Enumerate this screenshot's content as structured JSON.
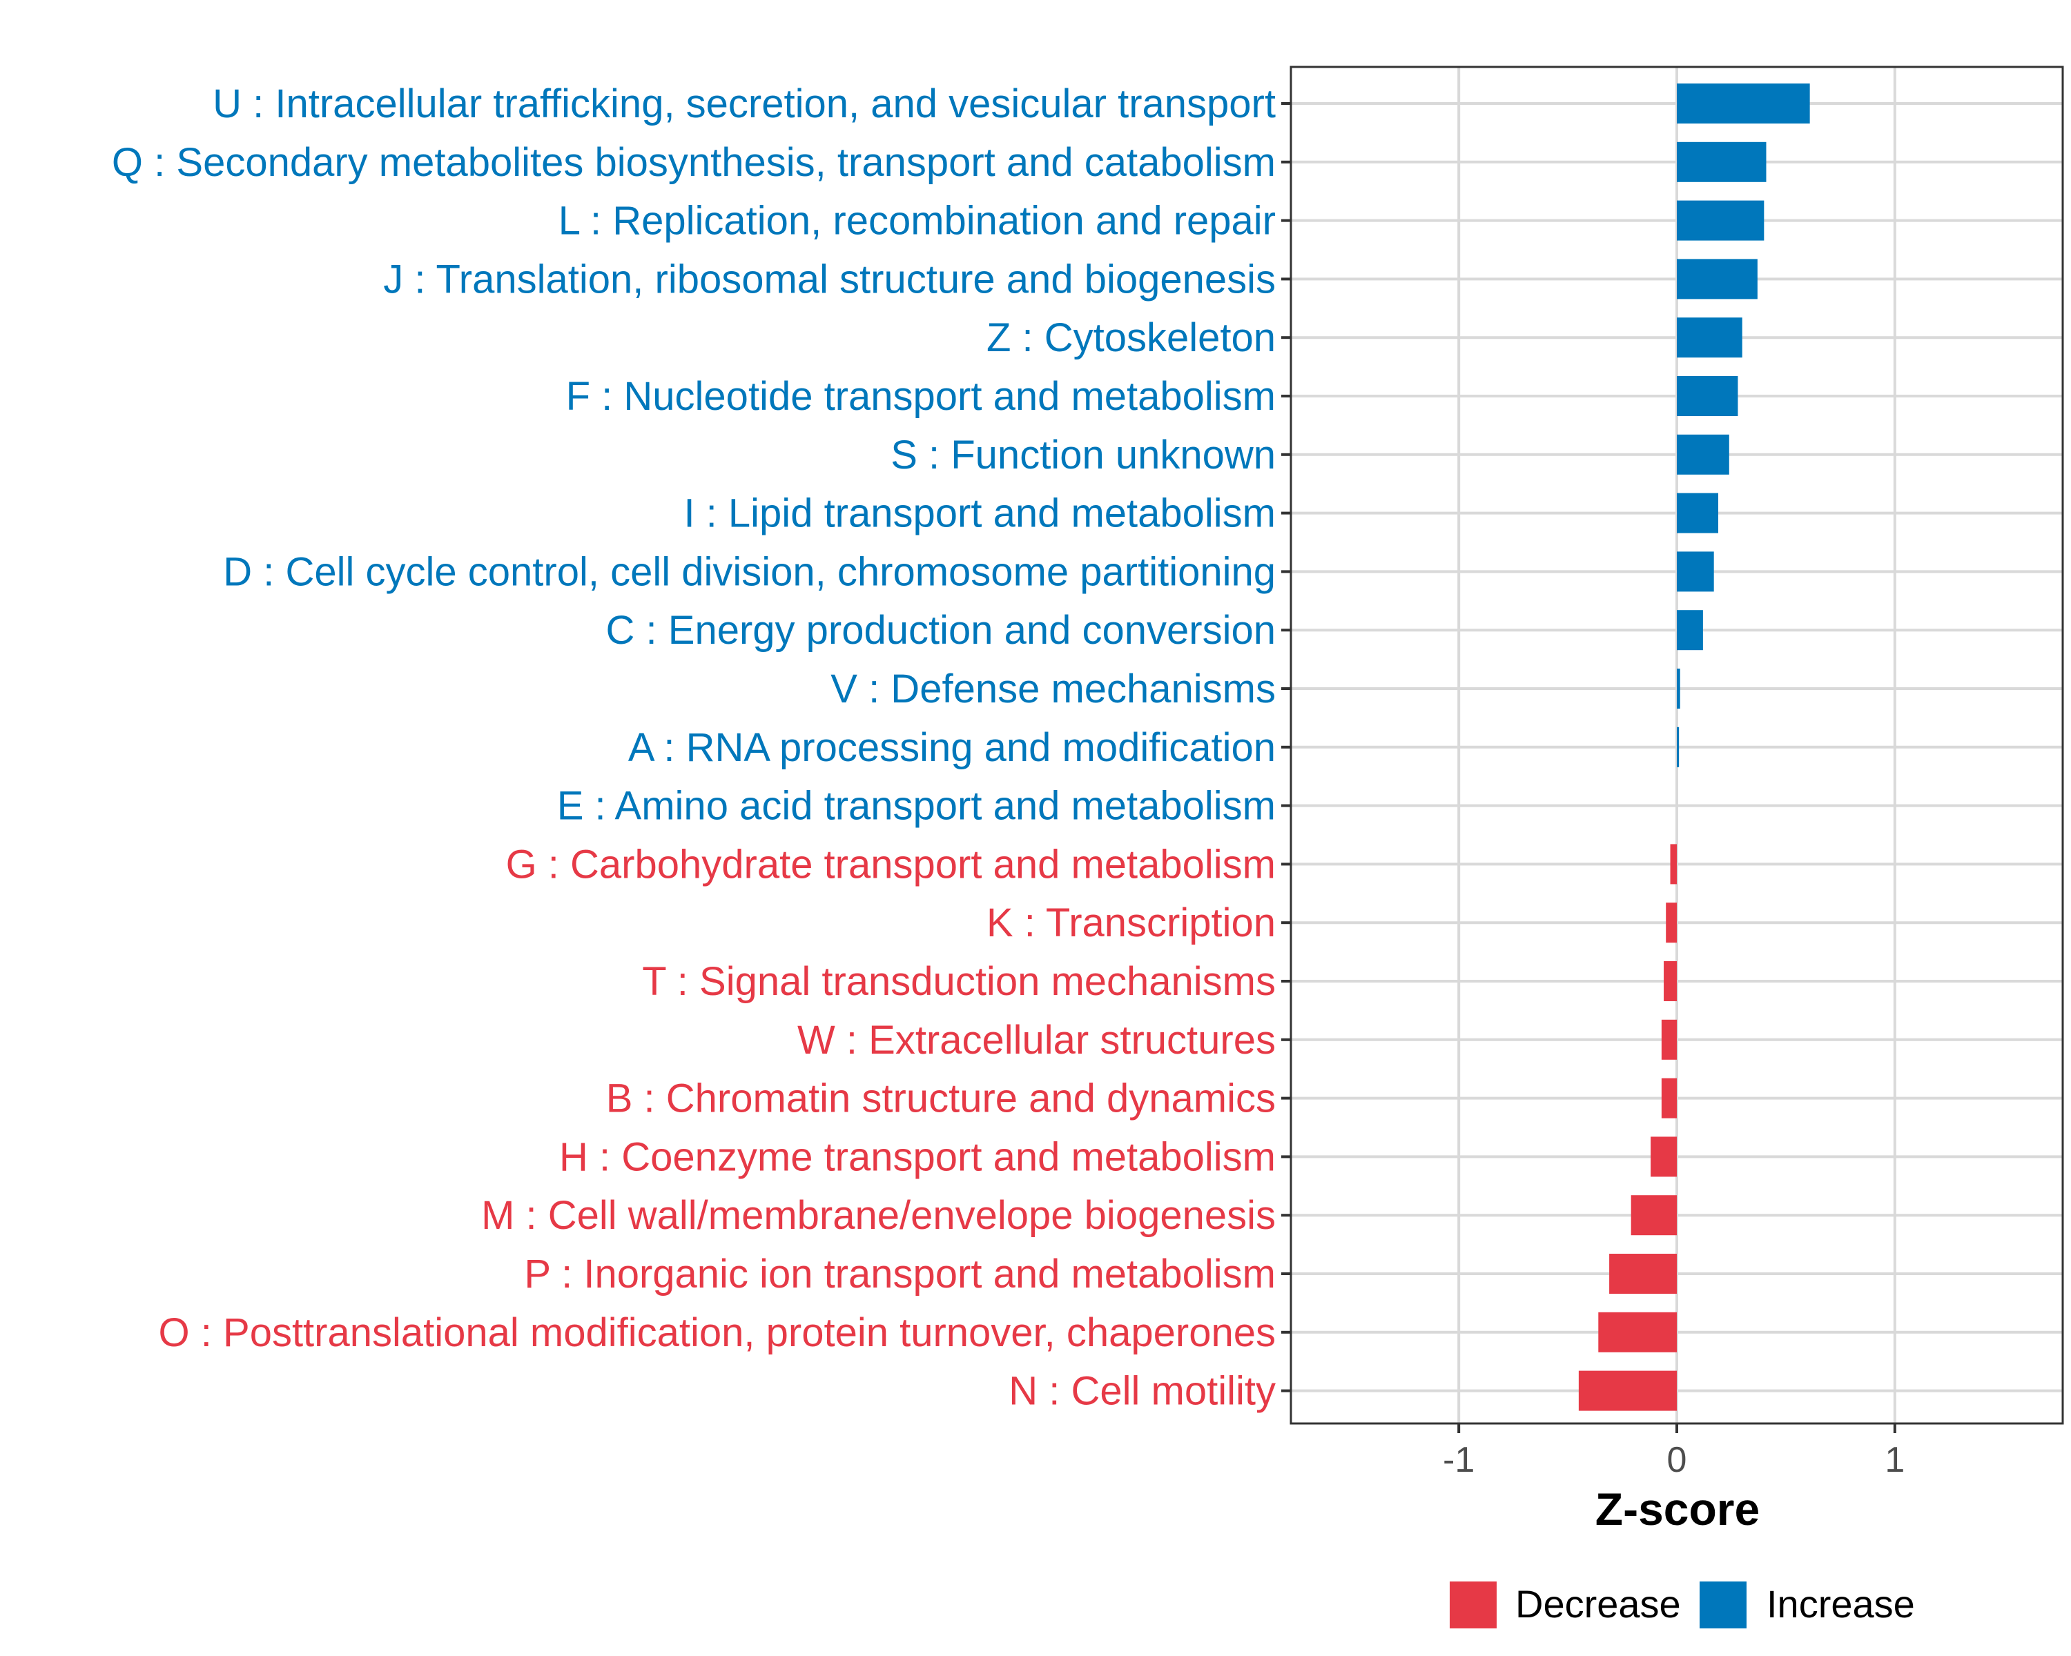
{
  "chart_data": {
    "type": "bar",
    "orientation": "horizontal",
    "title": "",
    "xlabel": "Z-score",
    "ylabel": "",
    "xlim": [
      -1.77,
      1.77
    ],
    "xticks": [
      -1,
      0,
      1
    ],
    "xtick_labels": [
      "-1",
      "0",
      "1"
    ],
    "grid": true,
    "legend_position": "bottom",
    "colors": {
      "Increase": "#0077BB",
      "Decrease": "#E63946"
    },
    "series": [
      {
        "name": "Decrease",
        "color": "#E63946"
      },
      {
        "name": "Increase",
        "color": "#0077BB"
      }
    ],
    "categories": [
      {
        "label": "U : Intracellular trafficking, secretion, and vesicular transport",
        "value": 0.61,
        "group": "Increase"
      },
      {
        "label": "Q : Secondary metabolites biosynthesis, transport and catabolism",
        "value": 0.41,
        "group": "Increase"
      },
      {
        "label": "L : Replication, recombination and repair",
        "value": 0.4,
        "group": "Increase"
      },
      {
        "label": "J : Translation, ribosomal structure and biogenesis",
        "value": 0.37,
        "group": "Increase"
      },
      {
        "label": "Z : Cytoskeleton",
        "value": 0.3,
        "group": "Increase"
      },
      {
        "label": "F : Nucleotide transport and metabolism",
        "value": 0.28,
        "group": "Increase"
      },
      {
        "label": "S : Function unknown",
        "value": 0.24,
        "group": "Increase"
      },
      {
        "label": "I : Lipid transport and metabolism",
        "value": 0.19,
        "group": "Increase"
      },
      {
        "label": "D : Cell cycle control, cell division, chromosome partitioning",
        "value": 0.17,
        "group": "Increase"
      },
      {
        "label": "C : Energy production and conversion",
        "value": 0.12,
        "group": "Increase"
      },
      {
        "label": "V : Defense mechanisms",
        "value": 0.015,
        "group": "Increase"
      },
      {
        "label": "A : RNA processing and modification",
        "value": 0.01,
        "group": "Increase"
      },
      {
        "label": "E : Amino acid transport and metabolism",
        "value": 0.0,
        "group": "Increase"
      },
      {
        "label": "G : Carbohydrate transport and metabolism",
        "value": -0.03,
        "group": "Decrease"
      },
      {
        "label": "K : Transcription",
        "value": -0.05,
        "group": "Decrease"
      },
      {
        "label": "T : Signal transduction mechanisms",
        "value": -0.06,
        "group": "Decrease"
      },
      {
        "label": "W : Extracellular structures",
        "value": -0.07,
        "group": "Decrease"
      },
      {
        "label": "B : Chromatin structure and dynamics",
        "value": -0.07,
        "group": "Decrease"
      },
      {
        "label": "H : Coenzyme transport and metabolism",
        "value": -0.12,
        "group": "Decrease"
      },
      {
        "label": "M : Cell wall/membrane/envelope biogenesis",
        "value": -0.21,
        "group": "Decrease"
      },
      {
        "label": "P : Inorganic ion transport and metabolism",
        "value": -0.31,
        "group": "Decrease"
      },
      {
        "label": "O : Posttranslational modification, protein turnover, chaperones",
        "value": -0.36,
        "group": "Decrease"
      },
      {
        "label": "N : Cell motility",
        "value": -0.45,
        "group": "Decrease"
      }
    ]
  }
}
